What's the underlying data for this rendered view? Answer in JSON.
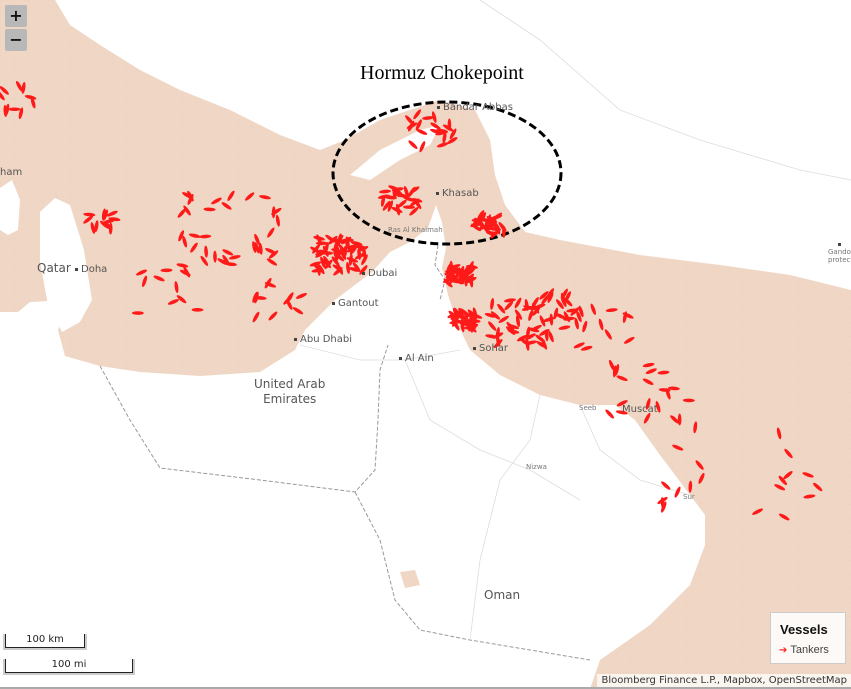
{
  "map": {
    "title": "Hormuz Chokepoint",
    "colors": {
      "sea": "#f0d6c4",
      "land": "#ffffff",
      "vessel": "#ff1a1a",
      "border": "#999999"
    },
    "labels": {
      "bandar_abbas": "Bandar Abbas",
      "khasab": "Khasab",
      "ras_al_khaimah": "Ras Al Khaimah",
      "qatar": "Qatar",
      "doha": "Doha",
      "dubai": "Dubai",
      "gantout": "Gantout",
      "abu_dhabi": "Abu Dhabi",
      "uae_line1": "United Arab",
      "uae_line2": "Emirates",
      "al_ain": "Al Ain",
      "sohar": "Sohar",
      "seeb": "Seeb",
      "muscat": "Muscat",
      "nizwa": "Nizwa",
      "sur": "Sur",
      "oman": "Oman",
      "ham": "ham",
      "gando1": "Gando",
      "gando2": "protected a"
    }
  },
  "controls": {
    "zoom_in": "+",
    "zoom_out": "−"
  },
  "legend": {
    "title": "Vessels",
    "items": [
      {
        "label": "Tankers",
        "icon": "red-arrow-icon",
        "color": "#ff1a1a"
      }
    ]
  },
  "scale": {
    "metric": "100 km",
    "imperial": "100 mi"
  },
  "attribution": "Bloomberg Finance L.P., Mapbox, OpenStreetMap"
}
